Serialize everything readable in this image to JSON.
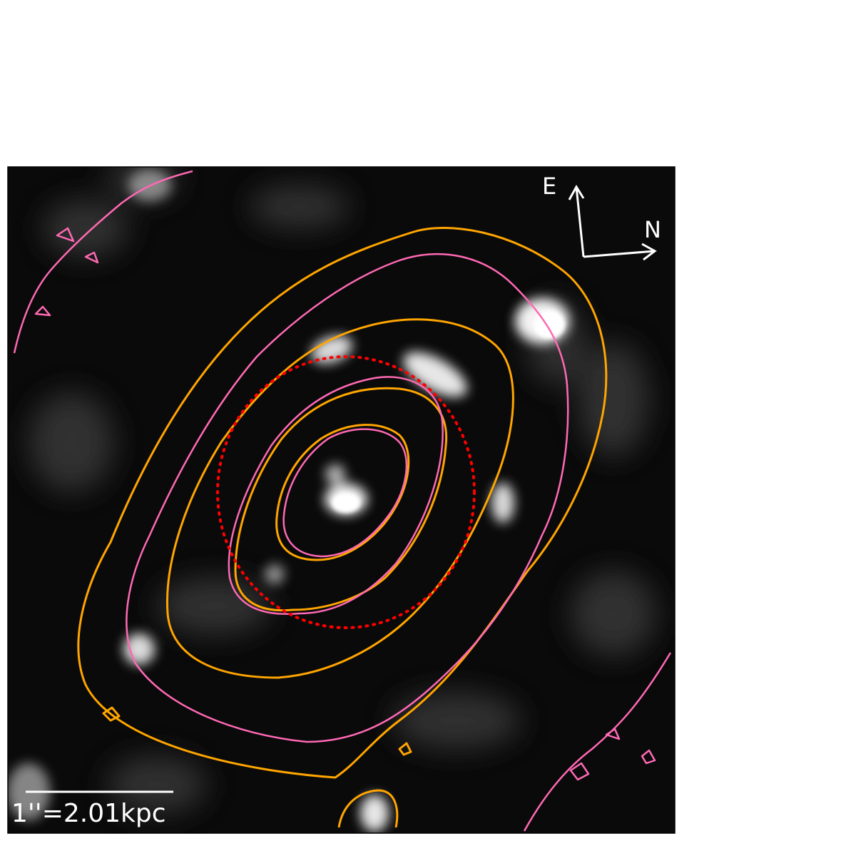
{
  "image": {
    "compass": {
      "east_label": "E",
      "north_label": "N",
      "color": "#ffffff"
    },
    "scale_bar": {
      "label": "1''=2.01kpc",
      "color": "#ffffff"
    },
    "contours": {
      "orange_color": "#ffa500",
      "pink_color": "#ff69b4",
      "aperture_color": "#ff0000"
    },
    "background": "#0a0a0a"
  }
}
